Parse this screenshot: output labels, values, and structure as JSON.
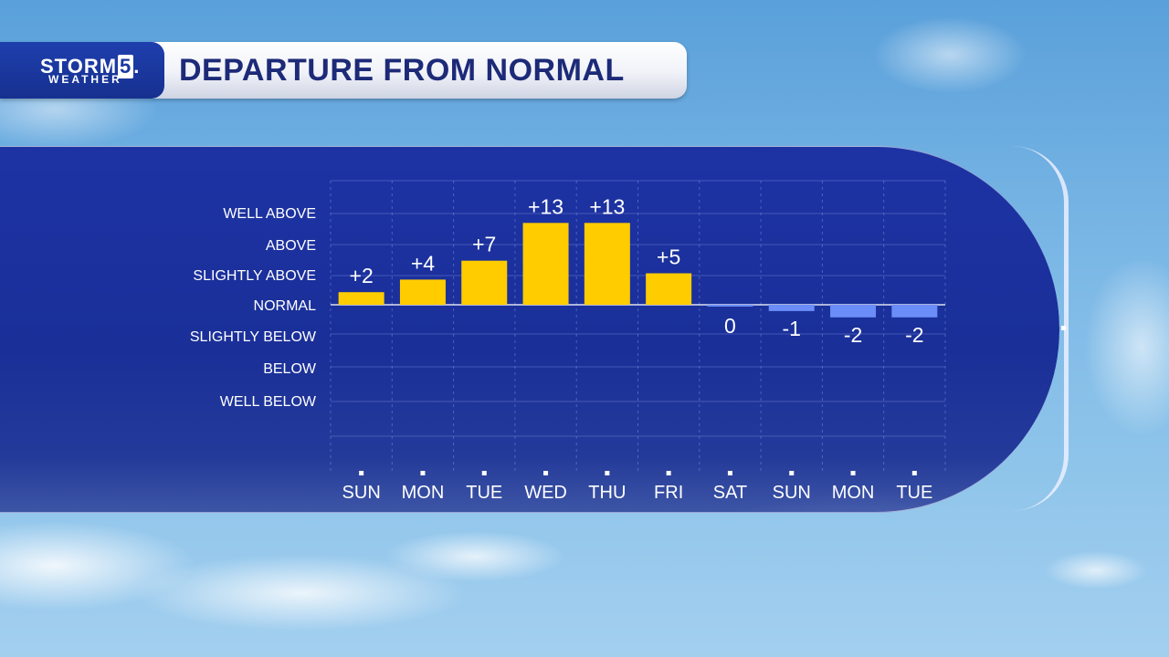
{
  "header": {
    "logo_text": "STORM",
    "logo_number": "5",
    "logo_sub": "WEATHER",
    "title": "DEPARTURE FROM NORMAL"
  },
  "colors": {
    "above": "#ffcc00",
    "below": "#6b8df7",
    "panel": "#1b319c",
    "title": "#1d2a78"
  },
  "chart_data": {
    "type": "bar",
    "title": "DEPARTURE FROM NORMAL",
    "categories": [
      "SUN",
      "MON",
      "TUE",
      "WED",
      "THU",
      "FRI",
      "SAT",
      "SUN",
      "MON",
      "TUE"
    ],
    "values": [
      2,
      4,
      7,
      13,
      13,
      5,
      0,
      -1,
      -2,
      -2
    ],
    "labels": [
      "+2",
      "+4",
      "+7",
      "+13",
      "+13",
      "+5",
      "0",
      "-1",
      "-2",
      "-2"
    ],
    "y_categories": [
      "WELL ABOVE",
      "ABOVE",
      "SLIGHTLY ABOVE",
      "NORMAL",
      "SLIGHTLY BELOW",
      "BELOW",
      "WELL BELOW"
    ],
    "grid": true
  }
}
